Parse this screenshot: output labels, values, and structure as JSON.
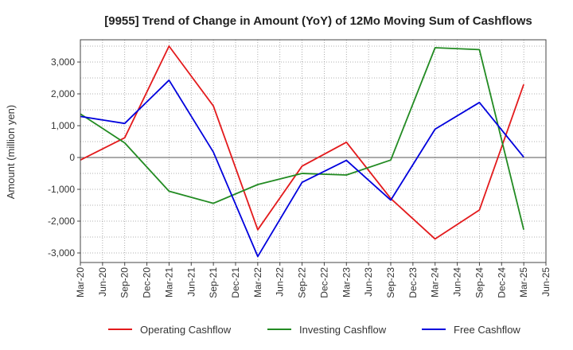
{
  "chart_data": {
    "type": "line",
    "title": "[9955]  Trend of Change in Amount (YoY) of 12Mo Moving Sum of Cashflows",
    "xlabel": "",
    "ylabel": "Amount (million yen)",
    "ylim": [
      -3300,
      3700
    ],
    "yticks": [
      3000,
      2000,
      1000,
      0,
      -1000,
      -2000,
      -3000
    ],
    "ytick_labels": [
      "3,000",
      "2,000",
      "1,000",
      "0",
      "-1,000",
      "-2,000",
      "-3,000"
    ],
    "categories": [
      "Mar-20",
      "Jun-20",
      "Sep-20",
      "Dec-20",
      "Mar-21",
      "Jun-21",
      "Sep-21",
      "Dec-21",
      "Mar-22",
      "Jun-22",
      "Sep-22",
      "Dec-22",
      "Mar-23",
      "Jun-23",
      "Sep-23",
      "Dec-23",
      "Mar-24",
      "Jun-24",
      "Sep-24",
      "Dec-24",
      "Mar-25",
      "Jun-25"
    ],
    "grid": true,
    "legend_position": "bottom",
    "series": [
      {
        "name": "Operating Cashflow",
        "color": "#e31a1c",
        "x": [
          "Mar-20",
          "Sep-20",
          "Mar-21",
          "Sep-21",
          "Mar-22",
          "Sep-22",
          "Mar-23",
          "Sep-23",
          "Mar-24",
          "Sep-24",
          "Mar-25"
        ],
        "values": [
          -80,
          620,
          3500,
          1620,
          -2270,
          -270,
          480,
          -1290,
          -2560,
          -1650,
          2300
        ]
      },
      {
        "name": "Investing Cashflow",
        "color": "#228b22",
        "x": [
          "Mar-20",
          "Sep-20",
          "Mar-21",
          "Sep-21",
          "Mar-22",
          "Sep-22",
          "Mar-23",
          "Sep-23",
          "Mar-24",
          "Sep-24",
          "Mar-25"
        ],
        "values": [
          1370,
          460,
          -1060,
          -1440,
          -850,
          -500,
          -550,
          -80,
          3450,
          3390,
          -2270
        ]
      },
      {
        "name": "Free Cashflow",
        "color": "#0000dd",
        "x": [
          "Mar-20",
          "Sep-20",
          "Mar-21",
          "Sep-21",
          "Mar-22",
          "Sep-22",
          "Mar-23",
          "Sep-23",
          "Mar-24",
          "Sep-24",
          "Mar-25"
        ],
        "values": [
          1290,
          1070,
          2430,
          170,
          -3110,
          -780,
          -90,
          -1340,
          890,
          1730,
          10
        ]
      }
    ]
  }
}
